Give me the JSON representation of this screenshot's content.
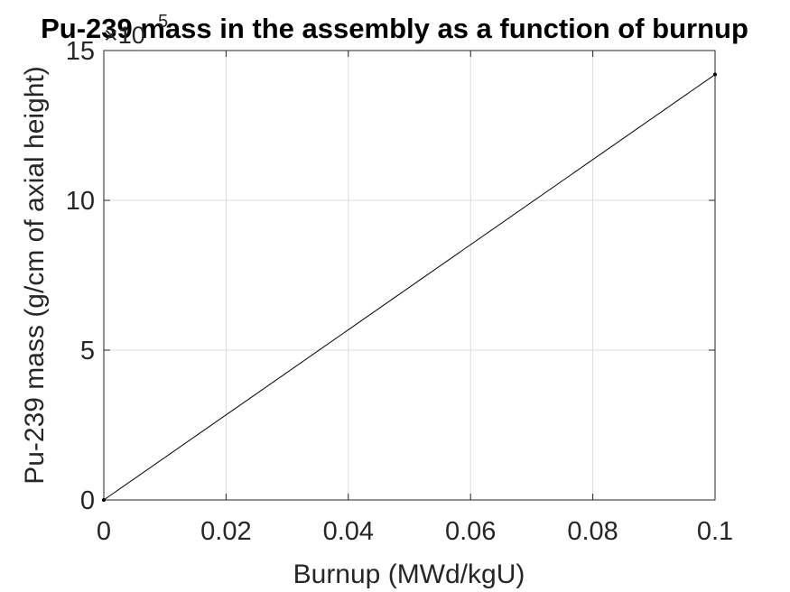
{
  "chart_data": {
    "type": "line",
    "title": "Pu-239 mass in the assembly as a function of burnup",
    "xlabel": "Burnup (MWd/kgU)",
    "ylabel": "Pu-239 mass (g/cm of axial height)",
    "y_exponent_label": "×10",
    "y_exponent_power": "5",
    "xlim": [
      0,
      0.1
    ],
    "ylim": [
      0,
      15
    ],
    "x_ticks": [
      "0",
      "0.02",
      "0.04",
      "0.06",
      "0.08",
      "0.1"
    ],
    "y_ticks": [
      "0",
      "5",
      "10",
      "15"
    ],
    "grid": true,
    "series": [
      {
        "color": "#000000",
        "x": [
          0,
          0.1
        ],
        "y": [
          0,
          14.2
        ]
      }
    ]
  }
}
